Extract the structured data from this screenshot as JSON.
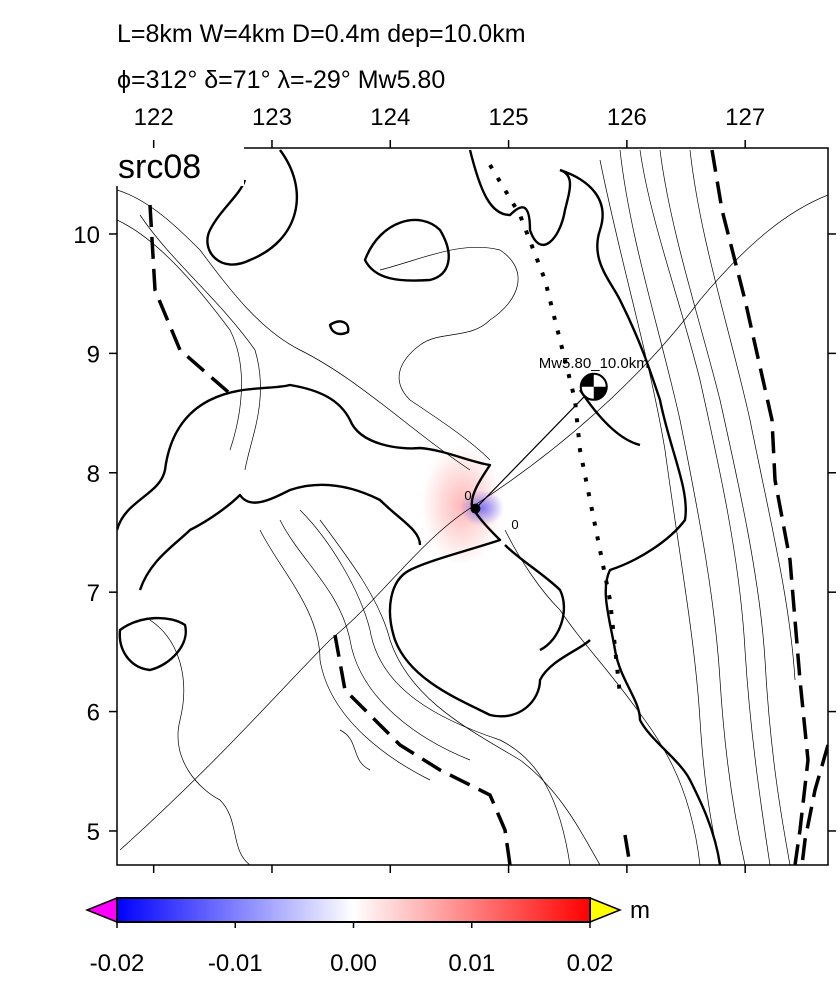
{
  "chart_data": {
    "type": "map",
    "title": "L=8km W=4km D=0.4m dep=10.0km",
    "subtitle": "ϕ=312° δ=71° λ=-29° Mw5.80",
    "panel_label": "src08",
    "xlim": [
      121.69,
      127.7
    ],
    "ylim": [
      4.715,
      10.72
    ],
    "xticks": [
      122,
      123,
      124,
      125,
      126,
      127
    ],
    "yticks": [
      5,
      6,
      7,
      8,
      9,
      10
    ],
    "epicenter": {
      "lon": 124.72,
      "lat": 7.7
    },
    "mechanism": {
      "lon": 125.72,
      "lat": 8.72,
      "label": "Mw5.80_10.0km"
    },
    "contour_labels": [
      "0",
      "0"
    ],
    "colorbar": {
      "lim": [
        -0.02,
        0.02
      ],
      "ticks": [
        -0.02,
        -0.01,
        {
          "value": 0,
          "label": "0.00"
        },
        0.01,
        0.02
      ],
      "unit": "m",
      "colors": [
        "#0000ff",
        "#ffffff",
        "#ff0000"
      ],
      "under_color": "#ff00ff",
      "over_color": "#ffff00"
    }
  }
}
